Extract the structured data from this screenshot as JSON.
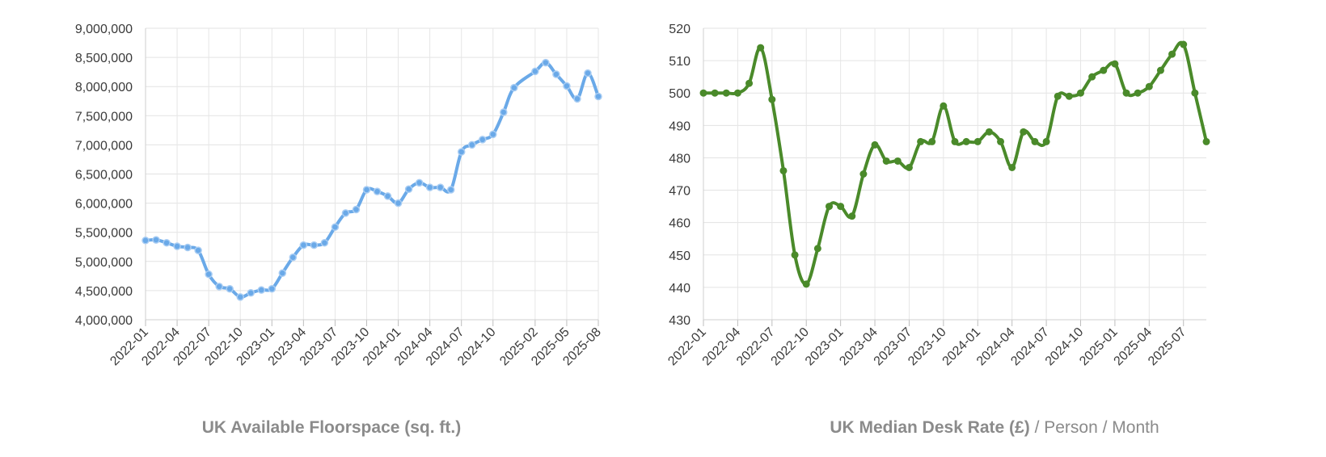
{
  "chart_data": [
    {
      "type": "line",
      "title": "UK Available Floorspace (sq. ft.)",
      "xlabel": "",
      "ylabel": "",
      "ylim": [
        4000000,
        9000000
      ],
      "yticks": [
        4000000,
        4500000,
        5000000,
        5500000,
        6000000,
        6500000,
        7000000,
        7500000,
        8000000,
        8500000,
        9000000
      ],
      "ytick_labels": [
        "4,000,000",
        "4,500,000",
        "5,000,000",
        "5,500,000",
        "6,000,000",
        "6,500,000",
        "7,000,000",
        "7,500,000",
        "8,000,000",
        "8,500,000",
        "9,000,000"
      ],
      "xtick_labels": [
        "2022-01",
        "2022-04",
        "2022-07",
        "2022-10",
        "2023-01",
        "2023-04",
        "2023-07",
        "2023-10",
        "2024-01",
        "2024-04",
        "2024-07",
        "2024-10",
        "2025-02",
        "2025-05",
        "2025-08"
      ],
      "grid": true,
      "color": "#6aa9e8",
      "series": [
        {
          "x": [
            "2022-01",
            "2022-02",
            "2022-03",
            "2022-04",
            "2022-05",
            "2022-06",
            "2022-07",
            "2022-08",
            "2022-09",
            "2022-10",
            "2022-11",
            "2022-12",
            "2023-01",
            "2023-02",
            "2023-03",
            "2023-04",
            "2023-05",
            "2023-06",
            "2023-07",
            "2023-08",
            "2023-09",
            "2023-10",
            "2023-11",
            "2023-12",
            "2024-01",
            "2024-02",
            "2024-03",
            "2024-04",
            "2024-05",
            "2024-06",
            "2024-07",
            "2024-08",
            "2024-09",
            "2024-10",
            "2024-11",
            "2024-12",
            "2025-02",
            "2025-03",
            "2025-04",
            "2025-05",
            "2025-06",
            "2025-07",
            "2025-08"
          ],
          "y": [
            5360000,
            5370000,
            5320000,
            5260000,
            5240000,
            5190000,
            4780000,
            4570000,
            4530000,
            4390000,
            4460000,
            4510000,
            4530000,
            4800000,
            5070000,
            5280000,
            5280000,
            5320000,
            5590000,
            5830000,
            5890000,
            6230000,
            6200000,
            6120000,
            6000000,
            6240000,
            6350000,
            6270000,
            6270000,
            6230000,
            6880000,
            7000000,
            7090000,
            7180000,
            7560000,
            7980000,
            8260000,
            8410000,
            8210000,
            8010000,
            7790000,
            8230000,
            7830000
          ]
        }
      ]
    },
    {
      "type": "line",
      "title": "UK Median Desk Rate (£) / Person / Month",
      "title_bold": "UK Median Desk Rate (£)",
      "title_rest": " / Person / Month",
      "xlabel": "",
      "ylabel": "",
      "ylim": [
        430,
        520
      ],
      "yticks": [
        430,
        440,
        450,
        460,
        470,
        480,
        490,
        500,
        510,
        520
      ],
      "ytick_labels": [
        "430",
        "440",
        "450",
        "460",
        "470",
        "480",
        "490",
        "500",
        "510",
        "520"
      ],
      "xtick_labels": [
        "2022-01",
        "2022-04",
        "2022-07",
        "2022-10",
        "2023-01",
        "2023-04",
        "2023-07",
        "2023-10",
        "2024-01",
        "2024-04",
        "2024-07",
        "2024-10",
        "2025-01",
        "2025-04",
        "2025-07"
      ],
      "grid": true,
      "color": "#4a8a2a",
      "series": [
        {
          "x": [
            "2022-01",
            "2022-02",
            "2022-03",
            "2022-04",
            "2022-05",
            "2022-06",
            "2022-07",
            "2022-08",
            "2022-09",
            "2022-10",
            "2022-11",
            "2022-12",
            "2023-01",
            "2023-02",
            "2023-03",
            "2023-04",
            "2023-05",
            "2023-06",
            "2023-07",
            "2023-08",
            "2023-09",
            "2023-10",
            "2023-11",
            "2023-12",
            "2024-01",
            "2024-02",
            "2024-03",
            "2024-04",
            "2024-05",
            "2024-06",
            "2024-07",
            "2024-08",
            "2024-09",
            "2024-10",
            "2024-11",
            "2024-12",
            "2025-01",
            "2025-02",
            "2025-03",
            "2025-04",
            "2025-05",
            "2025-06",
            "2025-07",
            "2025-08",
            "2025-09"
          ],
          "y": [
            500,
            500,
            500,
            500,
            503,
            514,
            498,
            476,
            450,
            441,
            452,
            465,
            465,
            462,
            475,
            484,
            479,
            479,
            477,
            485,
            485,
            496,
            485,
            485,
            485,
            488,
            485,
            477,
            488,
            485,
            485,
            499,
            499,
            500,
            505,
            507,
            509,
            500,
            500,
            502,
            507,
            512,
            515,
            500,
            485
          ]
        }
      ]
    }
  ]
}
